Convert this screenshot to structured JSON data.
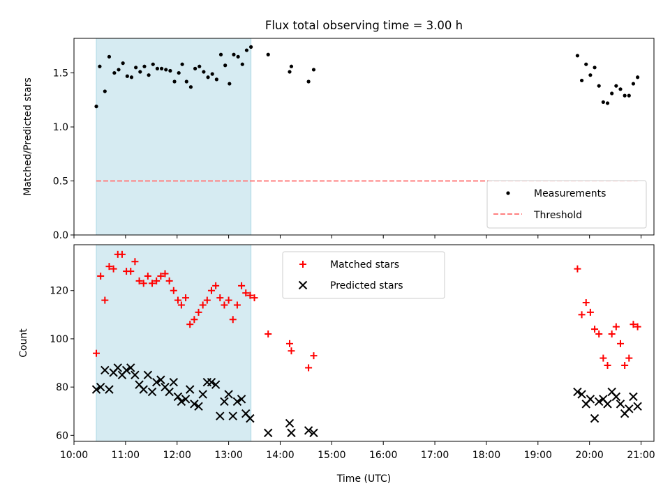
{
  "chart_data": [
    {
      "type": "scatter",
      "title": "Flux total observing time = 3.00 h",
      "xlabel": "",
      "ylabel": "Matched/Predicted stars",
      "xlim": [
        "10:00",
        "21:15"
      ],
      "ylim": [
        0,
        1.82
      ],
      "yticks": [
        "0.0",
        "0.5",
        "1.0",
        "1.5"
      ],
      "grid": false,
      "legend": "bottom-right",
      "shaded_interval": {
        "start": "10:26",
        "end": "13:26"
      },
      "series": [
        {
          "name": "Measurements",
          "marker": "dot",
          "color": "#000000",
          "points": [
            [
              "10:26",
              1.19
            ],
            [
              "10:30",
              1.56
            ],
            [
              "10:36",
              1.33
            ],
            [
              "10:41",
              1.65
            ],
            [
              "10:47",
              1.5
            ],
            [
              "10:52",
              1.53
            ],
            [
              "10:57",
              1.59
            ],
            [
              "11:02",
              1.47
            ],
            [
              "11:07",
              1.46
            ],
            [
              "11:12",
              1.55
            ],
            [
              "11:17",
              1.51
            ],
            [
              "11:22",
              1.56
            ],
            [
              "11:27",
              1.48
            ],
            [
              "11:32",
              1.58
            ],
            [
              "11:37",
              1.54
            ],
            [
              "11:42",
              1.54
            ],
            [
              "11:47",
              1.53
            ],
            [
              "11:52",
              1.52
            ],
            [
              "11:57",
              1.42
            ],
            [
              "12:02",
              1.5
            ],
            [
              "12:06",
              1.58
            ],
            [
              "12:11",
              1.42
            ],
            [
              "12:16",
              1.37
            ],
            [
              "12:21",
              1.54
            ],
            [
              "12:26",
              1.56
            ],
            [
              "12:31",
              1.51
            ],
            [
              "12:36",
              1.46
            ],
            [
              "12:41",
              1.49
            ],
            [
              "12:46",
              1.44
            ],
            [
              "12:51",
              1.67
            ],
            [
              "12:56",
              1.57
            ],
            [
              "13:01",
              1.4
            ],
            [
              "13:06",
              1.67
            ],
            [
              "13:11",
              1.65
            ],
            [
              "13:16",
              1.58
            ],
            [
              "13:21",
              1.71
            ],
            [
              "13:26",
              1.74
            ],
            [
              "13:46",
              1.67
            ],
            [
              "14:11",
              1.51
            ],
            [
              "14:13",
              1.56
            ],
            [
              "14:33",
              1.42
            ],
            [
              "14:39",
              1.53
            ],
            [
              "19:46",
              1.66
            ],
            [
              "19:51",
              1.43
            ],
            [
              "19:56",
              1.58
            ],
            [
              "20:01",
              1.48
            ],
            [
              "20:06",
              1.55
            ],
            [
              "20:11",
              1.38
            ],
            [
              "20:16",
              1.23
            ],
            [
              "20:21",
              1.22
            ],
            [
              "20:26",
              1.31
            ],
            [
              "20:31",
              1.38
            ],
            [
              "20:36",
              1.35
            ],
            [
              "20:41",
              1.29
            ],
            [
              "20:46",
              1.29
            ],
            [
              "20:51",
              1.4
            ],
            [
              "20:56",
              1.46
            ]
          ]
        },
        {
          "name": "Threshold",
          "style": "dashed-line",
          "color": "#ff8080",
          "points": [
            [
              "10:26",
              0.5
            ],
            [
              "20:56",
              0.5
            ]
          ]
        }
      ]
    },
    {
      "type": "scatter",
      "title": "",
      "xlabel": "Time (UTC)",
      "ylabel": "Count",
      "xlim": [
        "10:00",
        "21:15"
      ],
      "xticks": [
        "10:00",
        "11:00",
        "12:00",
        "13:00",
        "14:00",
        "15:00",
        "16:00",
        "17:00",
        "18:00",
        "19:00",
        "20:00",
        "21:00"
      ],
      "ylim": [
        57.5,
        139
      ],
      "yticks": [
        "60",
        "80",
        "100",
        "120"
      ],
      "grid": false,
      "legend": "top-center",
      "shaded_interval": {
        "start": "10:26",
        "end": "13:26"
      },
      "series": [
        {
          "name": "Matched stars",
          "marker": "plus",
          "color": "#ff0000",
          "points": [
            [
              "10:26",
              94
            ],
            [
              "10:31",
              126
            ],
            [
              "10:36",
              116
            ],
            [
              "10:41",
              130
            ],
            [
              "10:46",
              129
            ],
            [
              "10:51",
              135
            ],
            [
              "10:56",
              135
            ],
            [
              "11:01",
              128
            ],
            [
              "11:06",
              128
            ],
            [
              "11:11",
              132
            ],
            [
              "11:16",
              124
            ],
            [
              "11:21",
              123
            ],
            [
              "11:26",
              126
            ],
            [
              "11:31",
              123
            ],
            [
              "11:36",
              124
            ],
            [
              "11:41",
              126
            ],
            [
              "11:46",
              127
            ],
            [
              "11:51",
              124
            ],
            [
              "11:56",
              120
            ],
            [
              "12:01",
              116
            ],
            [
              "12:05",
              114
            ],
            [
              "12:10",
              117
            ],
            [
              "12:15",
              106
            ],
            [
              "12:20",
              108
            ],
            [
              "12:25",
              111
            ],
            [
              "12:30",
              114
            ],
            [
              "12:35",
              116
            ],
            [
              "12:40",
              120
            ],
            [
              "12:45",
              122
            ],
            [
              "12:50",
              117
            ],
            [
              "12:55",
              114
            ],
            [
              "13:00",
              116
            ],
            [
              "13:05",
              108
            ],
            [
              "13:10",
              114
            ],
            [
              "13:15",
              122
            ],
            [
              "13:20",
              119
            ],
            [
              "13:25",
              118
            ],
            [
              "13:30",
              117
            ],
            [
              "13:46",
              102
            ],
            [
              "14:11",
              98
            ],
            [
              "14:13",
              95
            ],
            [
              "14:33",
              88
            ],
            [
              "14:39",
              93
            ],
            [
              "19:46",
              129
            ],
            [
              "19:51",
              110
            ],
            [
              "19:56",
              115
            ],
            [
              "20:01",
              111
            ],
            [
              "20:06",
              104
            ],
            [
              "20:11",
              102
            ],
            [
              "20:16",
              92
            ],
            [
              "20:21",
              89
            ],
            [
              "20:26",
              102
            ],
            [
              "20:31",
              105
            ],
            [
              "20:36",
              98
            ],
            [
              "20:41",
              89
            ],
            [
              "20:46",
              92
            ],
            [
              "20:51",
              106
            ],
            [
              "20:56",
              105
            ]
          ]
        },
        {
          "name": "Predicted stars",
          "marker": "x",
          "color": "#000000",
          "points": [
            [
              "10:26",
              79
            ],
            [
              "10:31",
              80
            ],
            [
              "10:36",
              87
            ],
            [
              "10:41",
              79
            ],
            [
              "10:46",
              86
            ],
            [
              "10:51",
              88
            ],
            [
              "10:56",
              85
            ],
            [
              "11:01",
              87
            ],
            [
              "11:06",
              88
            ],
            [
              "11:11",
              85
            ],
            [
              "11:16",
              81
            ],
            [
              "11:21",
              79
            ],
            [
              "11:26",
              85
            ],
            [
              "11:31",
              78
            ],
            [
              "11:36",
              82
            ],
            [
              "11:41",
              83
            ],
            [
              "11:46",
              80
            ],
            [
              "11:51",
              78
            ],
            [
              "11:56",
              82
            ],
            [
              "12:01",
              76
            ],
            [
              "12:05",
              74
            ],
            [
              "12:10",
              75
            ],
            [
              "12:15",
              79
            ],
            [
              "12:20",
              73
            ],
            [
              "12:25",
              72
            ],
            [
              "12:30",
              77
            ],
            [
              "12:35",
              82
            ],
            [
              "12:40",
              82
            ],
            [
              "12:45",
              81
            ],
            [
              "12:50",
              68
            ],
            [
              "12:55",
              74
            ],
            [
              "13:00",
              77
            ],
            [
              "13:05",
              68
            ],
            [
              "13:10",
              74
            ],
            [
              "13:15",
              75
            ],
            [
              "13:20",
              69
            ],
            [
              "13:25",
              67
            ],
            [
              "13:46",
              61
            ],
            [
              "14:11",
              65
            ],
            [
              "14:13",
              61
            ],
            [
              "14:33",
              62
            ],
            [
              "14:39",
              61
            ],
            [
              "19:46",
              78
            ],
            [
              "19:51",
              77
            ],
            [
              "19:56",
              73
            ],
            [
              "20:01",
              75
            ],
            [
              "20:06",
              67
            ],
            [
              "20:11",
              74
            ],
            [
              "20:16",
              75
            ],
            [
              "20:21",
              73
            ],
            [
              "20:26",
              78
            ],
            [
              "20:31",
              76
            ],
            [
              "20:36",
              73
            ],
            [
              "20:41",
              69
            ],
            [
              "20:46",
              71
            ],
            [
              "20:51",
              76
            ],
            [
              "20:56",
              72
            ]
          ]
        }
      ]
    }
  ],
  "colors": {
    "shade": "#add8e6",
    "threshold": "#ff8080",
    "matched": "#ff0000",
    "predicted": "#000000"
  }
}
